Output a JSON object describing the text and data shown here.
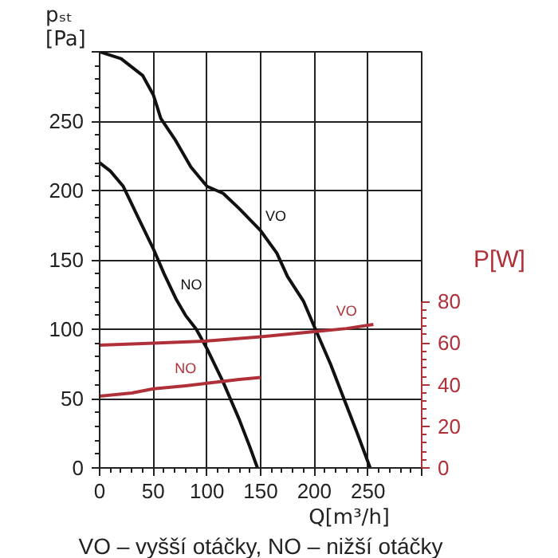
{
  "chart_data": {
    "type": "line",
    "xlabel": "Q[m³/h]",
    "ylabel": "pₛₜ [Pa]",
    "y2label": "P[W]",
    "xlim": [
      0,
      300
    ],
    "ylim": [
      0,
      300
    ],
    "y2lim": [
      0,
      200
    ],
    "xticks": [
      0,
      50,
      100,
      150,
      200,
      250,
      {
        "value": 300,
        "label": null
      }
    ],
    "yticks": [
      0,
      50,
      100,
      150,
      200,
      250,
      {
        "value": 300,
        "label": null
      }
    ],
    "y2ticks": [
      0,
      20,
      40,
      60,
      80
    ],
    "grid": true,
    "marker": "none",
    "line_style": "solid",
    "series": [
      {
        "name": "VO",
        "color": "#111111",
        "x": [
          0,
          20,
          40,
          50,
          57,
          70,
          85,
          100,
          115,
          130,
          150,
          165,
          175,
          190,
          201,
          215,
          230,
          240,
          252
        ],
        "values": [
          300,
          295,
          283,
          269,
          252,
          237,
          217,
          203,
          198,
          187,
          171,
          155,
          138,
          120,
          100,
          75,
          45,
          25,
          0
        ]
      },
      {
        "name": "NO",
        "color": "#111111",
        "x": [
          0,
          10,
          22,
          35,
          50,
          60,
          71,
          80,
          90,
          100,
          115,
          130,
          140,
          147
        ],
        "values": [
          220,
          214,
          203,
          182,
          158,
          140,
          122,
          110,
          100,
          86,
          62,
          35,
          15,
          0
        ]
      },
      {
        "name": "VO",
        "color": "#b0303a",
        "axis": "y2",
        "x": [
          0,
          50,
          100,
          150,
          200,
          230,
          255
        ],
        "values": [
          59,
          60,
          61,
          63,
          65.5,
          67,
          69
        ]
      },
      {
        "name": "NO",
        "color": "#b0303a",
        "axis": "y2",
        "x": [
          0,
          30,
          50,
          80,
          100,
          130,
          150
        ],
        "values": [
          34.5,
          36,
          38,
          39.5,
          40.7,
          42.5,
          43.5
        ]
      }
    ],
    "annotations": [
      "VO – vyšší otáčky, NO – nižší otáčky"
    ]
  }
}
